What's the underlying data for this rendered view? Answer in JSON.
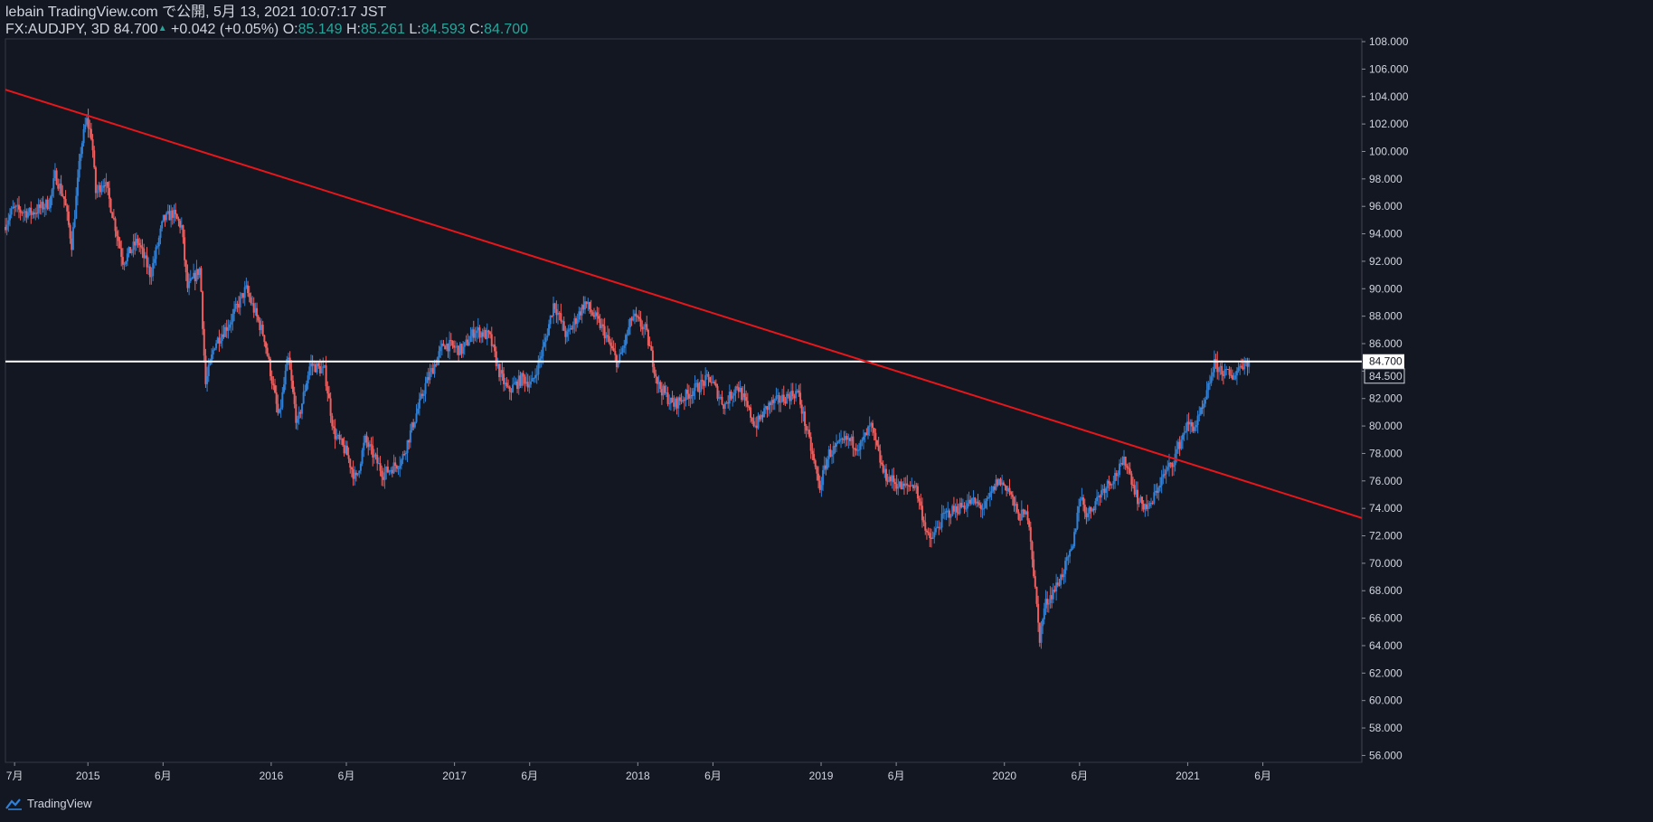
{
  "header": {
    "line1": "lebain TradingView.com で公開, 5月 13, 2021 10:07:17 JST",
    "symbol": "FX:AUDJPY, 3D",
    "last": "84.700",
    "change": "+0.042 (+0.05%)",
    "o_label": "O:",
    "o_value": "85.149",
    "h_label": "H:",
    "h_value": "85.261",
    "l_label": "L:",
    "l_value": "84.593",
    "c_label": "C:",
    "c_value": "84.700"
  },
  "footer": {
    "brand": "TradingView"
  },
  "colors": {
    "background": "#131722",
    "up": "#2f80d6",
    "down": "#ef5f5f",
    "trendline": "#e8161b",
    "hline": "#ffffff",
    "text": "#d1d4dc",
    "teal": "#26a69a"
  },
  "chart_data": {
    "type": "candlestick",
    "timeframe": "3D",
    "ylim": [
      55.5,
      108.2
    ],
    "y_ticks": [
      56,
      58,
      60,
      62,
      64,
      66,
      68,
      70,
      72,
      74,
      76,
      78,
      80,
      82,
      84,
      86,
      88,
      90,
      92,
      94,
      96,
      98,
      100,
      102,
      104,
      106,
      108
    ],
    "x_start": 2014.55,
    "x_end": 2021.95,
    "x_ticks": [
      {
        "label": "7月",
        "t": 2014.6
      },
      {
        "label": "2015",
        "t": 2015.0
      },
      {
        "label": "6月",
        "t": 2015.41
      },
      {
        "label": "2016",
        "t": 2016.0
      },
      {
        "label": "6月",
        "t": 2016.41
      },
      {
        "label": "2017",
        "t": 2017.0
      },
      {
        "label": "6月",
        "t": 2017.41
      },
      {
        "label": "2018",
        "t": 2018.0
      },
      {
        "label": "6月",
        "t": 2018.41
      },
      {
        "label": "2019",
        "t": 2019.0
      },
      {
        "label": "6月",
        "t": 2019.41
      },
      {
        "label": "2020",
        "t": 2020.0
      },
      {
        "label": "6月",
        "t": 2020.41
      },
      {
        "label": "2021",
        "t": 2021.0
      },
      {
        "label": "6月",
        "t": 2021.41
      }
    ],
    "price_path": [
      [
        2014.55,
        94.5
      ],
      [
        2014.6,
        95.8
      ],
      [
        2014.7,
        95.5
      ],
      [
        2014.8,
        96.3
      ],
      [
        2014.83,
        98.3
      ],
      [
        2014.88,
        96.5
      ],
      [
        2014.92,
        93.2
      ],
      [
        2014.97,
        100.2
      ],
      [
        2015.0,
        102.3
      ],
      [
        2015.03,
        101.0
      ],
      [
        2015.05,
        97.0
      ],
      [
        2015.1,
        97.9
      ],
      [
        2015.15,
        95.0
      ],
      [
        2015.2,
        92.0
      ],
      [
        2015.28,
        93.5
      ],
      [
        2015.35,
        91.0
      ],
      [
        2015.42,
        95.0
      ],
      [
        2015.47,
        95.5
      ],
      [
        2015.52,
        94.5
      ],
      [
        2015.55,
        90.0
      ],
      [
        2015.62,
        91.5
      ],
      [
        2015.65,
        83.0
      ],
      [
        2015.7,
        86.0
      ],
      [
        2015.78,
        87.5
      ],
      [
        2015.87,
        90.0
      ],
      [
        2015.97,
        86.5
      ],
      [
        2016.05,
        80.5
      ],
      [
        2016.1,
        85.0
      ],
      [
        2016.15,
        80.0
      ],
      [
        2016.22,
        84.5
      ],
      [
        2016.3,
        84.0
      ],
      [
        2016.35,
        79.5
      ],
      [
        2016.42,
        78.0
      ],
      [
        2016.47,
        76.0
      ],
      [
        2016.52,
        79.0
      ],
      [
        2016.62,
        76.5
      ],
      [
        2016.72,
        77.5
      ],
      [
        2016.85,
        83.0
      ],
      [
        2016.95,
        86.0
      ],
      [
        2017.05,
        85.5
      ],
      [
        2017.12,
        87.0
      ],
      [
        2017.2,
        86.5
      ],
      [
        2017.25,
        84.0
      ],
      [
        2017.3,
        82.5
      ],
      [
        2017.38,
        83.5
      ],
      [
        2017.43,
        83.0
      ],
      [
        2017.5,
        86.0
      ],
      [
        2017.55,
        89.0
      ],
      [
        2017.62,
        86.5
      ],
      [
        2017.72,
        89.0
      ],
      [
        2017.82,
        87.0
      ],
      [
        2017.9,
        84.5
      ],
      [
        2017.98,
        88.0
      ],
      [
        2018.05,
        87.0
      ],
      [
        2018.12,
        83.0
      ],
      [
        2018.2,
        81.5
      ],
      [
        2018.3,
        82.5
      ],
      [
        2018.4,
        83.5
      ],
      [
        2018.48,
        81.5
      ],
      [
        2018.55,
        83.0
      ],
      [
        2018.65,
        80.0
      ],
      [
        2018.72,
        81.5
      ],
      [
        2018.8,
        82.0
      ],
      [
        2018.88,
        82.5
      ],
      [
        2018.95,
        78.5
      ],
      [
        2019.0,
        75.5
      ],
      [
        2019.05,
        78.0
      ],
      [
        2019.15,
        79.0
      ],
      [
        2019.22,
        78.5
      ],
      [
        2019.28,
        80.0
      ],
      [
        2019.35,
        76.5
      ],
      [
        2019.45,
        75.5
      ],
      [
        2019.52,
        75.8
      ],
      [
        2019.57,
        73.0
      ],
      [
        2019.6,
        71.5
      ],
      [
        2019.68,
        73.5
      ],
      [
        2019.75,
        74.0
      ],
      [
        2019.83,
        74.5
      ],
      [
        2019.9,
        74.0
      ],
      [
        2019.97,
        76.0
      ],
      [
        2020.03,
        75.5
      ],
      [
        2020.08,
        73.5
      ],
      [
        2020.14,
        73.5
      ],
      [
        2020.17,
        69.0
      ],
      [
        2020.2,
        64.5
      ],
      [
        2020.23,
        67.0
      ],
      [
        2020.3,
        68.5
      ],
      [
        2020.38,
        71.0
      ],
      [
        2020.42,
        75.0
      ],
      [
        2020.46,
        73.5
      ],
      [
        2020.55,
        75.5
      ],
      [
        2020.62,
        76.5
      ],
      [
        2020.67,
        77.5
      ],
      [
        2020.74,
        74.5
      ],
      [
        2020.8,
        74.0
      ],
      [
        2020.86,
        76.0
      ],
      [
        2020.93,
        77.5
      ],
      [
        2021.0,
        80.0
      ],
      [
        2021.05,
        80.0
      ],
      [
        2021.1,
        81.5
      ],
      [
        2021.15,
        84.5
      ],
      [
        2021.2,
        84.0
      ],
      [
        2021.25,
        83.5
      ],
      [
        2021.3,
        84.5
      ],
      [
        2021.34,
        84.7
      ]
    ],
    "horizontal_line": {
      "price": 84.7,
      "label": "84.700"
    },
    "price_label_box": "84.500",
    "trendline": {
      "start": [
        2014.55,
        104.5
      ],
      "end": [
        2021.95,
        73.3
      ]
    }
  }
}
